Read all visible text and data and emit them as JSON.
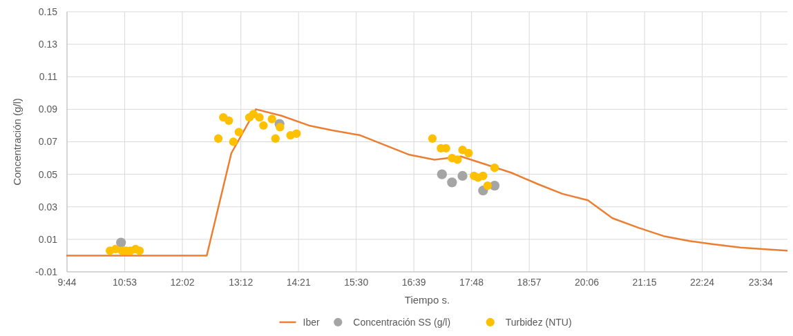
{
  "chart_data": {
    "type": "scatter",
    "xlabel": "Tiempo s.",
    "ylabel": "Concentración (g/l)",
    "xlim": [
      9.733,
      24.1
    ],
    "ylim": [
      -0.01,
      0.15
    ],
    "yticks": [
      -0.01,
      0.01,
      0.03,
      0.05,
      0.07,
      0.09,
      0.11,
      0.13,
      0.15
    ],
    "xticks": [
      {
        "value": 9.7333,
        "label": "9:44"
      },
      {
        "value": 10.8833,
        "label": "10:53"
      },
      {
        "value": 12.0333,
        "label": "12:02"
      },
      {
        "value": 13.2,
        "label": "13:12"
      },
      {
        "value": 14.35,
        "label": "14:21"
      },
      {
        "value": 15.5,
        "label": "15:30"
      },
      {
        "value": 16.65,
        "label": "16:39"
      },
      {
        "value": 17.8,
        "label": "17:48"
      },
      {
        "value": 18.95,
        "label": "18:57"
      },
      {
        "value": 20.1,
        "label": "20:06"
      },
      {
        "value": 21.25,
        "label": "21:15"
      },
      {
        "value": 22.4,
        "label": "22:24"
      },
      {
        "value": 23.5667,
        "label": "23:34"
      }
    ],
    "grid": true,
    "legend": "bottom",
    "series": [
      {
        "name": "Iber",
        "type": "line",
        "color": "#ed7d31",
        "line_style": "solid",
        "x": [
          9.733,
          12.52,
          13.01,
          13.5,
          14.01,
          14.56,
          15.03,
          15.58,
          16.56,
          17.06,
          17.59,
          18.59,
          19.12,
          19.61,
          20.12,
          20.61,
          21.14,
          21.63,
          22.14,
          22.62,
          23.16,
          23.6,
          24.09
        ],
        "values": [
          0,
          0,
          0.063,
          0.09,
          0.086,
          0.08,
          0.077,
          0.074,
          0.062,
          0.059,
          0.061,
          0.051,
          0.044,
          0.038,
          0.034,
          0.023,
          0.017,
          0.012,
          0.009,
          0.007,
          0.005,
          0.004,
          0.003
        ]
      },
      {
        "name": "Concentración SS (g/l)",
        "marker": "circle",
        "color": "#a5a5a5",
        "x": [
          10.81,
          13.97,
          17.21,
          17.41,
          17.62,
          18.03,
          18.26
        ],
        "values": [
          0.008,
          0.081,
          0.05,
          0.045,
          0.049,
          0.04,
          0.043
        ]
      },
      {
        "name": "Turbidez (NTU)",
        "marker": "circle",
        "color": "#ffc000",
        "x": [
          10.59,
          10.7,
          10.83,
          10.91,
          11.0,
          11.1,
          11.18,
          12.75,
          12.85,
          12.96,
          13.05,
          13.16,
          13.37,
          13.45,
          13.57,
          13.65,
          13.82,
          13.89,
          13.98,
          14.19,
          14.31,
          17.02,
          17.19,
          17.29,
          17.41,
          17.52,
          17.62,
          17.74,
          17.85,
          17.93,
          18.03,
          18.12,
          18.26
        ],
        "values": [
          0.003,
          0.004,
          0.003,
          0.003,
          0.003,
          0.004,
          0.003,
          0.072,
          0.085,
          0.083,
          0.07,
          0.076,
          0.085,
          0.087,
          0.085,
          0.08,
          0.084,
          0.072,
          0.079,
          0.074,
          0.075,
          0.072,
          0.066,
          0.066,
          0.06,
          0.059,
          0.065,
          0.063,
          0.049,
          0.048,
          0.049,
          0.043,
          0.054
        ]
      }
    ]
  }
}
